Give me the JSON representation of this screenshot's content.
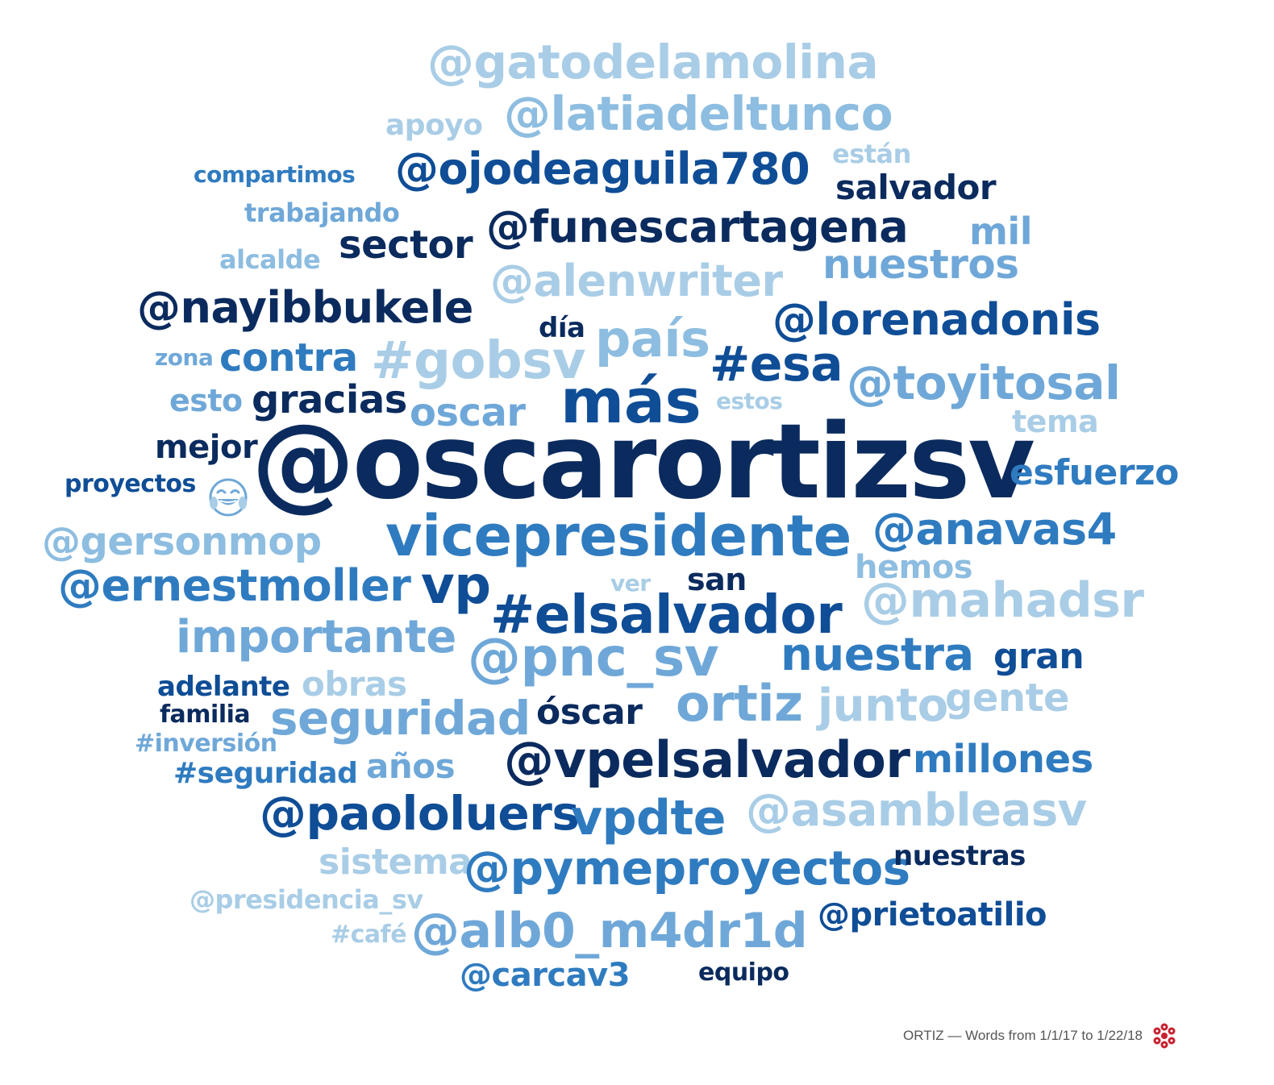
{
  "footer": {
    "caption": "ORTIZ — Words from 1/1/17 to 1/22/18",
    "logo_icon": "red-flower-logo",
    "logo_color": "#c8202f"
  },
  "emoji": {
    "name": "face-with-tears-of-joy-icon",
    "color": "#6fa8d8"
  },
  "palette": {
    "darkest": "#0b2b5e",
    "dark": "#0f4d96",
    "mid": "#2f7bc0",
    "light": "#6fa8d8",
    "lightest": "#a9cde6"
  },
  "words": [
    {
      "text": "@gatodelamolina",
      "color": "#a9cde6"
    },
    {
      "text": "@latiadeltunco",
      "color": "#8dbde0"
    },
    {
      "text": "apoyo",
      "color": "#a9cde6"
    },
    {
      "text": "están",
      "color": "#a9cde6"
    },
    {
      "text": "compartimos",
      "color": "#2f7bc0"
    },
    {
      "text": "@ojodeaguila780",
      "color": "#0f4d96"
    },
    {
      "text": "salvador",
      "color": "#0b2b5e"
    },
    {
      "text": "trabajando",
      "color": "#6fa8d8"
    },
    {
      "text": "sector",
      "color": "#0b2b5e"
    },
    {
      "text": "@funescartagena",
      "color": "#0b2b5e"
    },
    {
      "text": "mil",
      "color": "#6fa8d8"
    },
    {
      "text": "alcalde",
      "color": "#8dbde0"
    },
    {
      "text": "nuestros",
      "color": "#6fa8d8"
    },
    {
      "text": "@alenwriter",
      "color": "#a9cde6"
    },
    {
      "text": "@nayibbukele",
      "color": "#0b2b5e"
    },
    {
      "text": "día",
      "color": "#0b2b5e"
    },
    {
      "text": "país",
      "color": "#8dbde0"
    },
    {
      "text": "@lorenadonis",
      "color": "#0f4d96"
    },
    {
      "text": "zona",
      "color": "#6fa8d8"
    },
    {
      "text": "contra",
      "color": "#2f7bc0"
    },
    {
      "text": "#gobsv",
      "color": "#a9cde6"
    },
    {
      "text": "#esa",
      "color": "#0f4d96"
    },
    {
      "text": "@toyitosal",
      "color": "#6fa8d8"
    },
    {
      "text": "más",
      "color": "#0f4d96"
    },
    {
      "text": "esto",
      "color": "#6fa8d8"
    },
    {
      "text": "gracias",
      "color": "#0b2b5e"
    },
    {
      "text": "oscar",
      "color": "#6fa8d8"
    },
    {
      "text": "estos",
      "color": "#a9cde6"
    },
    {
      "text": "tema",
      "color": "#a9cde6"
    },
    {
      "text": "mejor",
      "color": "#0b2b5e"
    },
    {
      "text": "@oscarortizsv",
      "color": "#0b2b5e"
    },
    {
      "text": "esfuerzo",
      "color": "#2f7bc0"
    },
    {
      "text": "proyectos",
      "color": "#0f4d96"
    },
    {
      "text": "@gersonmop",
      "color": "#8dbde0"
    },
    {
      "text": "vicepresidente",
      "color": "#2f7bc0"
    },
    {
      "text": "@anavas4",
      "color": "#2f7bc0"
    },
    {
      "text": "hemos",
      "color": "#8dbde0"
    },
    {
      "text": "@ernestmoller",
      "color": "#2f7bc0"
    },
    {
      "text": "vp",
      "color": "#0f4d96"
    },
    {
      "text": "ver",
      "color": "#a9cde6"
    },
    {
      "text": "san",
      "color": "#0b2b5e"
    },
    {
      "text": "#elsalvador",
      "color": "#0f4d96"
    },
    {
      "text": "@mahadsr",
      "color": "#a9cde6"
    },
    {
      "text": "importante",
      "color": "#6fa8d8"
    },
    {
      "text": "@pnc_sv",
      "color": "#6fa8d8"
    },
    {
      "text": "nuestra",
      "color": "#2f7bc0"
    },
    {
      "text": "gran",
      "color": "#0f4d96"
    },
    {
      "text": "adelante",
      "color": "#0f4d96"
    },
    {
      "text": "obras",
      "color": "#a9cde6"
    },
    {
      "text": "familia",
      "color": "#0b2b5e"
    },
    {
      "text": "seguridad",
      "color": "#6fa8d8"
    },
    {
      "text": "óscar",
      "color": "#0b2b5e"
    },
    {
      "text": "ortiz",
      "color": "#6fa8d8"
    },
    {
      "text": "junto",
      "color": "#a9cde6"
    },
    {
      "text": "gente",
      "color": "#a9cde6"
    },
    {
      "text": "#inversión",
      "color": "#6fa8d8"
    },
    {
      "text": "@vpelsalvador",
      "color": "#0b2b5e"
    },
    {
      "text": "millones",
      "color": "#2f7bc0"
    },
    {
      "text": "#seguridad",
      "color": "#2f7bc0"
    },
    {
      "text": "años",
      "color": "#6fa8d8"
    },
    {
      "text": "@paololuers",
      "color": "#0f4d96"
    },
    {
      "text": "vpdte",
      "color": "#2f7bc0"
    },
    {
      "text": "@asambleasv",
      "color": "#a9cde6"
    },
    {
      "text": "sistema",
      "color": "#a9cde6"
    },
    {
      "text": "@pymeproyectos",
      "color": "#2f7bc0"
    },
    {
      "text": "nuestras",
      "color": "#0b2b5e"
    },
    {
      "text": "@presidencia_sv",
      "color": "#a9cde6"
    },
    {
      "text": "@prietoatilio",
      "color": "#0f4d96"
    },
    {
      "text": "#café",
      "color": "#a9cde6"
    },
    {
      "text": "@alb0_m4dr1d",
      "color": "#6fa8d8"
    },
    {
      "text": "@carcav3",
      "color": "#2f7bc0"
    },
    {
      "text": "equipo",
      "color": "#0b2b5e"
    }
  ]
}
